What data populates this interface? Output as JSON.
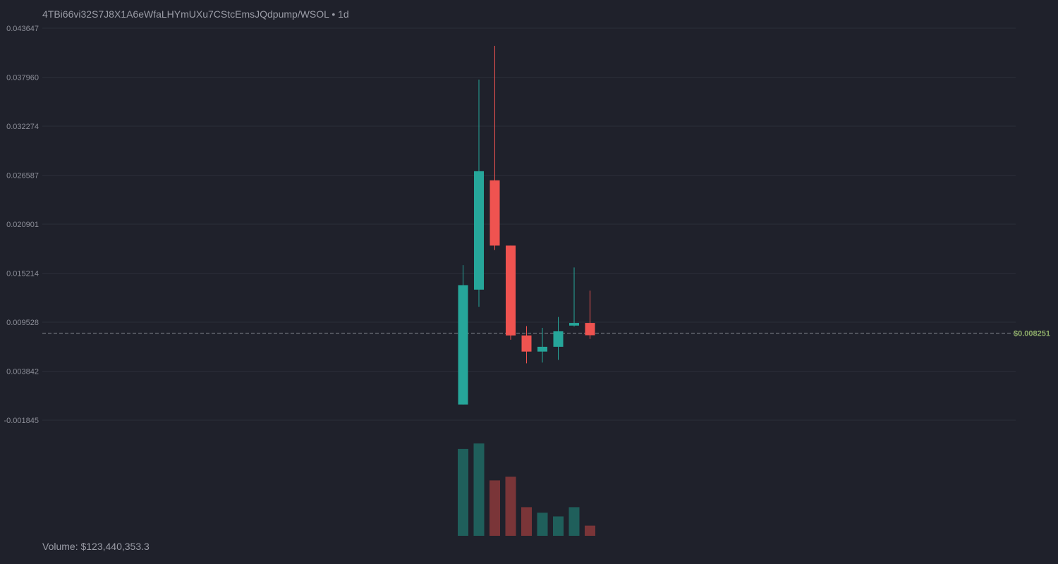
{
  "header": {
    "pair": "4TBi66vi32S7J8X1A6eWfaLHYmUXu7CStcEmsJQdpump/WSOL",
    "separator": " • ",
    "interval": "1d"
  },
  "footer": {
    "volume_text": "Volume: $123,440,353.3"
  },
  "colors": {
    "background": "#1f212b",
    "grid": "#2b2e39",
    "up": "#26a69a",
    "down": "#ef5350",
    "up_volume": "#1f5f5b",
    "down_volume": "#7a3538",
    "price_line": "#8a8d96",
    "price_label": "#8fae6a"
  },
  "chart_data": {
    "type": "candlestick",
    "title": "4TBi66vi32S7J8X1A6eWfaLHYmUXu7CStcEmsJQdpump/WSOL • 1d",
    "y_axis": {
      "ticks": [
        "0.043647",
        "0.037960",
        "0.032274",
        "0.026587",
        "0.020901",
        "0.015214",
        "0.009528",
        "0.003842",
        "-0.001845"
      ],
      "ylim": [
        -0.001845,
        0.043647
      ]
    },
    "current_price": 0.008251,
    "current_price_label": "$0.008251",
    "candles": [
      {
        "open": -2.5e-05,
        "high": 0.016144,
        "low": -2.5e-05,
        "close": 0.013826,
        "volume": 0.94
      },
      {
        "open": 0.013305,
        "high": 0.037682,
        "low": 0.011317,
        "close": 0.02705,
        "volume": 1.0
      },
      {
        "open": 0.025992,
        "high": 0.041603,
        "low": 0.017908,
        "close": 0.018416,
        "volume": 0.6
      },
      {
        "open": 0.018416,
        "high": 0.018416,
        "low": 0.007495,
        "close": 0.00799,
        "volume": 0.64
      },
      {
        "open": 0.00799,
        "high": 0.009069,
        "low": 0.004755,
        "close": 0.006117,
        "volume": 0.31
      },
      {
        "open": 0.006117,
        "high": 0.008874,
        "low": 0.004846,
        "close": 0.006673,
        "volume": 0.25
      },
      {
        "open": 0.006673,
        "high": 0.010133,
        "low": 0.005152,
        "close": 0.00847,
        "volume": 0.21
      },
      {
        "open": 0.009134,
        "high": 0.015875,
        "low": 0.009018,
        "close": 0.00944,
        "volume": 0.31
      },
      {
        "open": 0.00944,
        "high": 0.013188,
        "low": 0.007582,
        "close": 0.008014,
        "volume": 0.11
      }
    ]
  }
}
